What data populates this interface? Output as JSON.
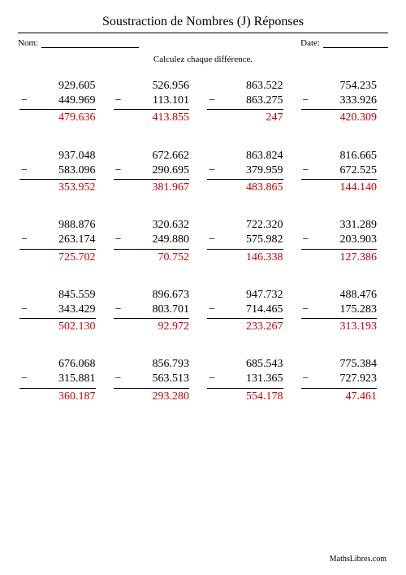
{
  "title": "Soustraction de Nombres (J) Réponses",
  "name_label": "Nom:",
  "date_label": "Date:",
  "instruction": "Calculez chaque différence.",
  "footer": "MathsLibres.com",
  "colors": {
    "answer": "#cc0000",
    "text": "#000000",
    "background": "#ffffff"
  },
  "problems": [
    {
      "minuend": "929.605",
      "subtrahend": "449.969",
      "answer": "479.636"
    },
    {
      "minuend": "526.956",
      "subtrahend": "113.101",
      "answer": "413.855"
    },
    {
      "minuend": "863.522",
      "subtrahend": "863.275",
      "answer": "247"
    },
    {
      "minuend": "754.235",
      "subtrahend": "333.926",
      "answer": "420.309"
    },
    {
      "minuend": "937.048",
      "subtrahend": "583.096",
      "answer": "353.952"
    },
    {
      "minuend": "672.662",
      "subtrahend": "290.695",
      "answer": "381.967"
    },
    {
      "minuend": "863.824",
      "subtrahend": "379.959",
      "answer": "483.865"
    },
    {
      "minuend": "816.665",
      "subtrahend": "672.525",
      "answer": "144.140"
    },
    {
      "minuend": "988.876",
      "subtrahend": "263.174",
      "answer": "725.702"
    },
    {
      "minuend": "320.632",
      "subtrahend": "249.880",
      "answer": "70.752"
    },
    {
      "minuend": "722.320",
      "subtrahend": "575.982",
      "answer": "146.338"
    },
    {
      "minuend": "331.289",
      "subtrahend": "203.903",
      "answer": "127.386"
    },
    {
      "minuend": "845.559",
      "subtrahend": "343.429",
      "answer": "502.130"
    },
    {
      "minuend": "896.673",
      "subtrahend": "803.701",
      "answer": "92.972"
    },
    {
      "minuend": "947.732",
      "subtrahend": "714.465",
      "answer": "233.267"
    },
    {
      "minuend": "488.476",
      "subtrahend": "175.283",
      "answer": "313.193"
    },
    {
      "minuend": "676.068",
      "subtrahend": "315.881",
      "answer": "360.187"
    },
    {
      "minuend": "856.793",
      "subtrahend": "563.513",
      "answer": "293.280"
    },
    {
      "minuend": "685.543",
      "subtrahend": "131.365",
      "answer": "554.178"
    },
    {
      "minuend": "775.384",
      "subtrahend": "727.923",
      "answer": "47.461"
    }
  ]
}
